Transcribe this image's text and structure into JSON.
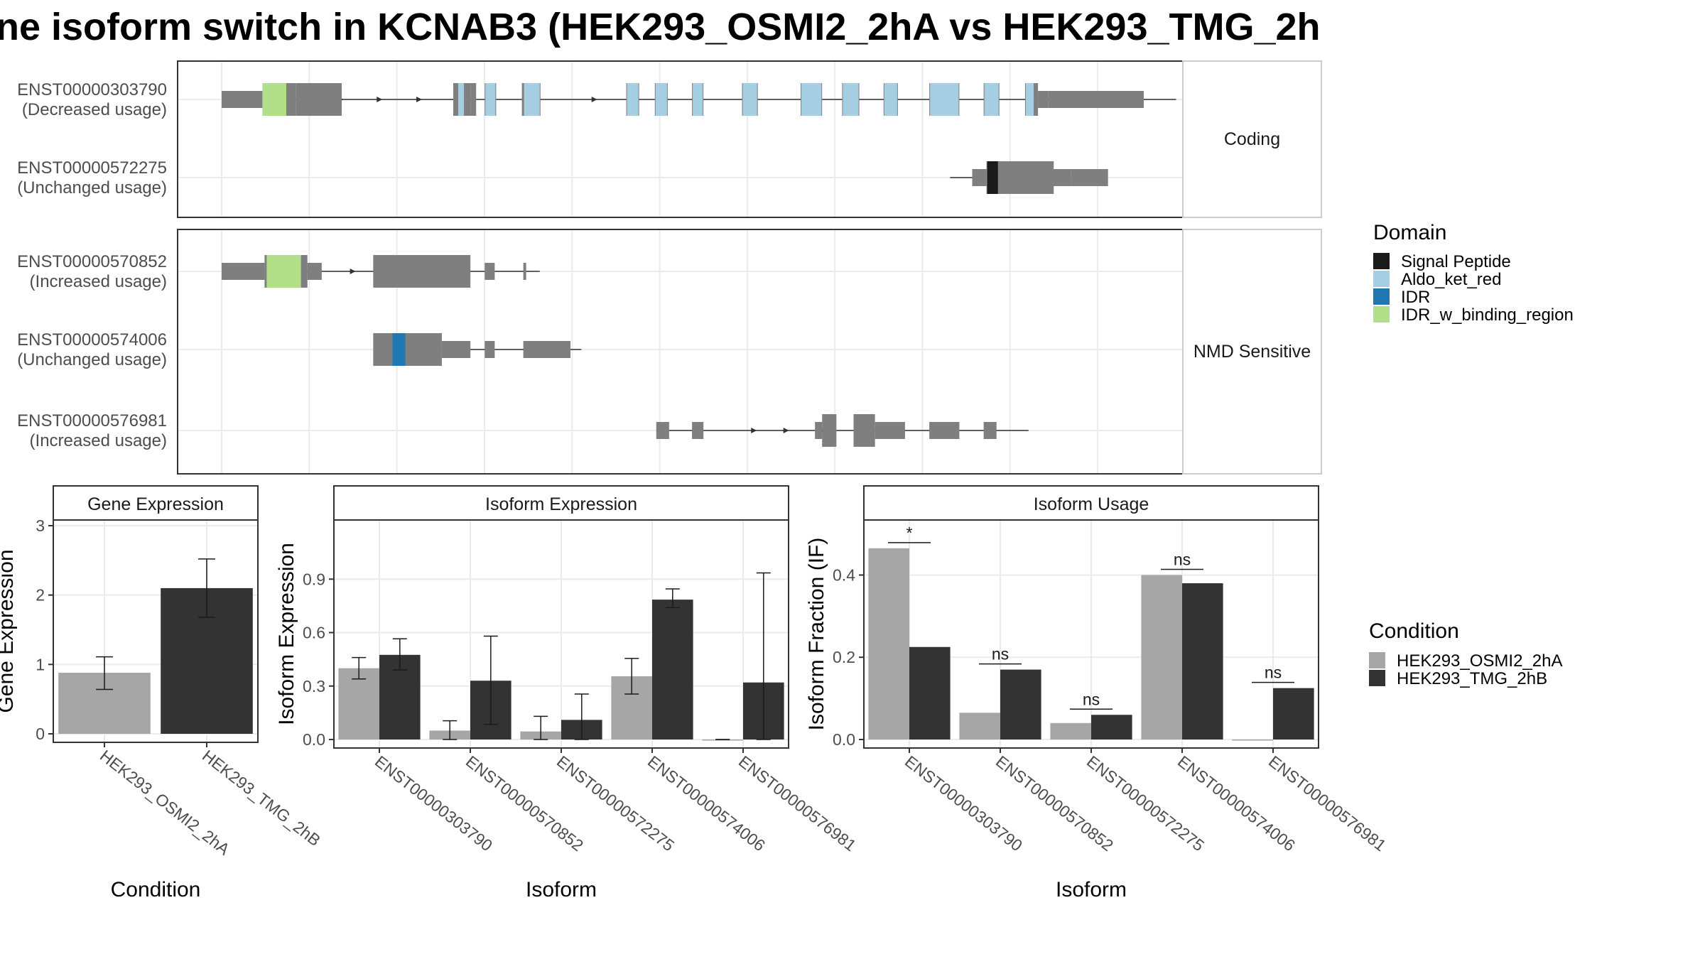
{
  "title": "ne isoform switch in KCNAB3 (HEK293_OSMI2_2hA vs HEK293_TMG_2h",
  "colors": {
    "exon": "#7f7f7f",
    "condition_a": "#a6a6a6",
    "condition_b": "#333333",
    "panel_border": "#333333",
    "strip_border": "#cccccc",
    "grid": "#ebebeb",
    "domains": {
      "Signal Peptide": "#1a1a1a",
      "Aldo_ket_red": "#a6cee3",
      "IDR": "#1f78b4",
      "IDR_w_binding_region": "#b2df8a"
    }
  },
  "structure": {
    "groups": [
      {
        "label": "Coding",
        "isoforms": [
          {
            "id": "ENST00000303790",
            "usage": "(Decreased usage)",
            "exons": [
              [
                0,
                0.045,
                "n"
              ],
              [
                0.045,
                0.095,
                "c"
              ],
              [
                0.261,
                0.274,
                "c"
              ],
              [
                0.274,
                0.353,
                "c"
              ],
              [
                0.462,
                0.937,
                "c"
              ],
              [
                0.937,
                1.035,
                "n"
              ]
            ],
            "domains": [
              [
                "IDR_w_binding_region",
                0.054,
                0.084
              ],
              [
                "Aldo_ket_red",
                0.274,
                0.282
              ],
              [
                "Aldo_ket_red",
                0.298,
                0.309
              ],
              [
                "Aldo_ket_red",
                0.338,
                0.361
              ],
              [
                "Aldo_ket_red",
                0.454,
                0.469
              ],
              [
                "Aldo_ket_red",
                0.487,
                0.5
              ],
              [
                "Aldo_ket_red",
                0.528,
                0.54
              ],
              [
                "Aldo_ket_red",
                0.583,
                0.6
              ],
              [
                "Aldo_ket_red",
                0.65,
                0.675
              ],
              [
                "Aldo_ket_red",
                0.7,
                0.72
              ],
              [
                "Aldo_ket_red",
                0.748,
                0.767
              ],
              [
                "Aldo_ket_red",
                0.797,
                0.83
              ],
              [
                "Aldo_ket_red",
                0.858,
                0.875
              ],
              [
                "Aldo_ket_red",
                0.918,
                0.93
              ]
            ],
            "coding_blocks": [
              [
                0.045,
                0.084
              ],
              [
                0.261,
                0.353
              ]
            ],
            "arrows": [
              0.13,
              0.172,
              0.215,
              0.405
            ]
          },
          {
            "id": "ENST00000572275",
            "usage": "(Unchanged usage)",
            "exons": [
              [
                0.79,
                0.8,
                "n"
              ],
              [
                0.8,
                0.935,
                "c"
              ]
            ],
            "domains": [
              [
                "Signal Peptide",
                0.81,
                0.828
              ]
            ],
            "coding_blocks": [
              [
                0.8,
                0.935
              ]
            ],
            "arrows": []
          }
        ]
      },
      {
        "label": "NMD Sensitive",
        "isoforms": [
          {
            "id": "ENST00000570852",
            "usage": "(Increased usage)",
            "exons": [
              [
                0,
                0.045,
                "n"
              ],
              [
                0.045,
                0.118,
                "c"
              ],
              [
                0.17,
                0.29,
                "c"
              ],
              [
                0.296,
                0.345,
                "n"
              ]
            ],
            "domains": [
              [
                "IDR_w_binding_region",
                0.049,
                0.099
              ]
            ],
            "coding_blocks": [
              [
                0.045,
                0.118
              ],
              [
                0.17,
                0.275
              ]
            ],
            "arrows": [
              0.143
            ]
          },
          {
            "id": "ENST00000574006",
            "usage": "(Unchanged usage)",
            "exons": [
              [
                0.17,
                0.245,
                "c"
              ],
              [
                0.245,
                0.39,
                "n"
              ]
            ],
            "domains": [
              [
                "IDR",
                0.198,
                0.217
              ]
            ],
            "coding_blocks": [
              [
                0.17,
                0.245
              ]
            ],
            "arrows": []
          },
          {
            "id": "ENST00000576981",
            "usage": "(Increased usage)",
            "exons": [
              [
                0.485,
                0.875,
                "n"
              ]
            ],
            "domains": [],
            "coding_blocks": [
              [
                0.655,
                0.8
              ]
            ],
            "arrows": [
              0.578,
              0.613,
              0.654
            ]
          }
        ]
      }
    ]
  },
  "chart_data": [
    {
      "type": "bar",
      "title": "Gene Expression",
      "xlabel": "Condition",
      "ylabel": "Gene Expression",
      "ylim": [
        0,
        3
      ],
      "yticks": [
        0,
        1,
        2,
        3
      ],
      "categories": [
        "HEK293_OSMI2_2hA",
        "HEK293_TMG_2hB"
      ],
      "values": [
        0.88,
        2.1
      ],
      "errors": [
        [
          0.64,
          1.11
        ],
        [
          1.68,
          2.52
        ]
      ]
    },
    {
      "type": "bar",
      "title": "Isoform Expression",
      "xlabel": "Isoform",
      "ylabel": "Isoform Expression",
      "ylim": [
        0,
        1.2
      ],
      "yticks": [
        0.0,
        0.3,
        0.6,
        0.9
      ],
      "categories": [
        "ENST00000303790",
        "ENST00000570852",
        "ENST00000572275",
        "ENST00000574006",
        "ENST00000576981"
      ],
      "series": [
        {
          "name": "HEK293_OSMI2_2hA",
          "values": [
            0.4,
            0.05,
            0.045,
            0.355,
            0.0
          ],
          "errors": [
            [
              0.34,
              0.46
            ],
            [
              0.0,
              0.105
            ],
            [
              0.0,
              0.13
            ],
            [
              0.255,
              0.455
            ],
            [
              0.0,
              0.0
            ]
          ]
        },
        {
          "name": "HEK293_TMG_2hB",
          "values": [
            0.475,
            0.33,
            0.11,
            0.785,
            0.32
          ],
          "errors": [
            [
              0.39,
              0.565
            ],
            [
              0.085,
              0.58
            ],
            [
              0.0,
              0.255
            ],
            [
              0.74,
              0.845
            ],
            [
              0.0,
              0.935
            ]
          ]
        }
      ]
    },
    {
      "type": "bar",
      "title": "Isoform Usage",
      "xlabel": "Isoform",
      "ylabel": "Isoform Fraction (IF)",
      "ylim": [
        0,
        0.52
      ],
      "yticks": [
        0.0,
        0.2,
        0.4
      ],
      "categories": [
        "ENST00000303790",
        "ENST00000570852",
        "ENST00000572275",
        "ENST00000574006",
        "ENST00000576981"
      ],
      "series": [
        {
          "name": "HEK293_OSMI2_2hA",
          "values": [
            0.465,
            0.065,
            0.04,
            0.4,
            0.0
          ]
        },
        {
          "name": "HEK293_TMG_2hB",
          "values": [
            0.225,
            0.17,
            0.06,
            0.38,
            0.125
          ]
        }
      ],
      "significance": [
        "*",
        "ns",
        "ns",
        "ns",
        "ns"
      ]
    }
  ],
  "legend": {
    "domain": {
      "title": "Domain",
      "entries": [
        "Signal Peptide",
        "Aldo_ket_red",
        "IDR",
        "IDR_w_binding_region"
      ]
    },
    "condition": {
      "title": "Condition",
      "entries": [
        "HEK293_OSMI2_2hA",
        "HEK293_TMG_2hB"
      ]
    }
  }
}
